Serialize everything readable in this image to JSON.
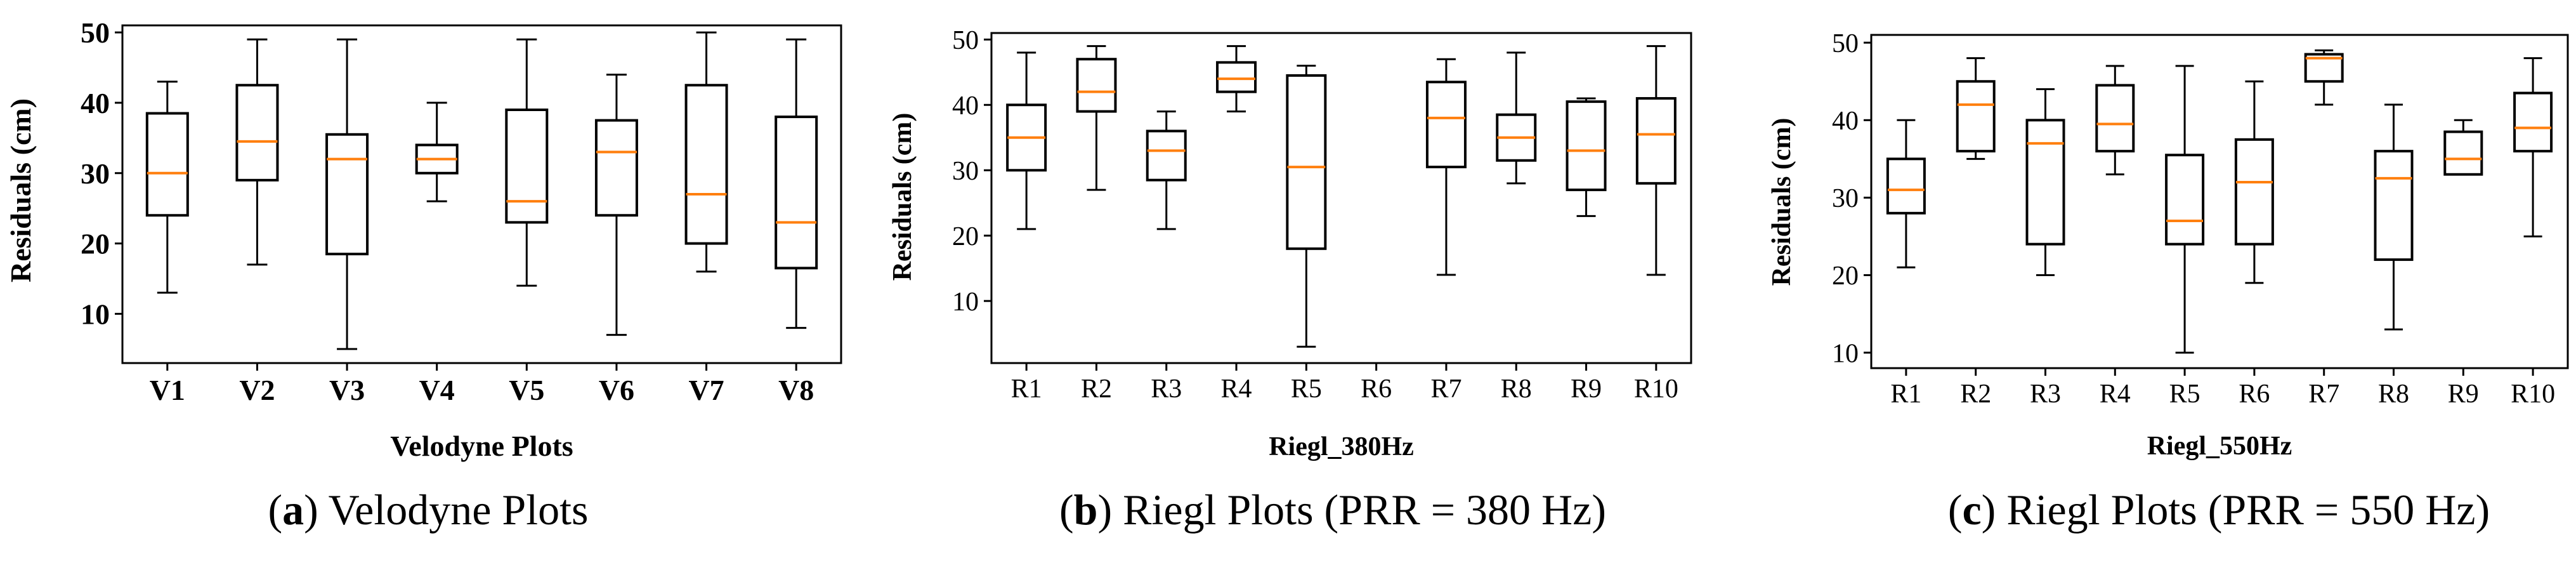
{
  "chart_data": [
    {
      "type": "box",
      "xlabel": "Velodyne Plots",
      "ylabel": "Residuals (cm)",
      "ylim": [
        3,
        51
      ],
      "yticks": [
        10,
        20,
        30,
        40,
        50
      ],
      "categories": [
        "V1",
        "V2",
        "V3",
        "V4",
        "V5",
        "V6",
        "V7",
        "V8"
      ],
      "boxes": [
        {
          "min": 13,
          "q1": 24,
          "median": 30,
          "q3": 38.5,
          "max": 43
        },
        {
          "min": 17,
          "q1": 29,
          "median": 34.5,
          "q3": 42.5,
          "max": 49
        },
        {
          "min": 5,
          "q1": 18.5,
          "median": 32,
          "q3": 35.5,
          "max": 49
        },
        {
          "min": 26,
          "q1": 30,
          "median": 32,
          "q3": 34,
          "max": 40
        },
        {
          "min": 14,
          "q1": 23,
          "median": 26,
          "q3": 39,
          "max": 49
        },
        {
          "min": 7,
          "q1": 24,
          "median": 33,
          "q3": 37.5,
          "max": 44
        },
        {
          "min": 16,
          "q1": 20,
          "median": 27,
          "q3": 42.5,
          "max": 50
        },
        {
          "min": 8,
          "q1": 16.5,
          "median": 23,
          "q3": 38,
          "max": 49
        }
      ],
      "bold_ticks": true,
      "caption": {
        "letter": "a",
        "text": "Velodyne Plots"
      }
    },
    {
      "type": "box",
      "xlabel": "Riegl_380Hz",
      "ylabel": "Residuals (cm)",
      "ylim": [
        0.5,
        51
      ],
      "yticks": [
        10,
        20,
        30,
        40,
        50
      ],
      "categories": [
        "R1",
        "R2",
        "R3",
        "R4",
        "R5",
        "R6",
        "R7",
        "R8",
        "R9",
        "R10"
      ],
      "boxes": [
        {
          "min": 21,
          "q1": 30,
          "median": 35,
          "q3": 40,
          "max": 48
        },
        {
          "min": 27,
          "q1": 39,
          "median": 42,
          "q3": 47,
          "max": 49
        },
        {
          "min": 21,
          "q1": 28.5,
          "median": 33,
          "q3": 36,
          "max": 39
        },
        {
          "min": 39,
          "q1": 42,
          "median": 44,
          "q3": 46.5,
          "max": 49
        },
        {
          "min": 3,
          "q1": 18,
          "median": 30.5,
          "q3": 44.5,
          "max": 46
        },
        null,
        {
          "min": 14,
          "q1": 30.5,
          "median": 38,
          "q3": 43.5,
          "max": 47
        },
        {
          "min": 28,
          "q1": 31.5,
          "median": 35,
          "q3": 38.5,
          "max": 48
        },
        {
          "min": 23,
          "q1": 27,
          "median": 33,
          "q3": 40.5,
          "max": 41
        },
        {
          "min": 14,
          "q1": 28,
          "median": 35.5,
          "q3": 41,
          "max": 49
        }
      ],
      "bold_ticks": false,
      "caption": {
        "letter": "b",
        "text": "Riegl Plots (PRR = 380 Hz)"
      }
    },
    {
      "type": "box",
      "xlabel": "Riegl_550Hz",
      "ylabel": "Residuals (cm)",
      "ylim": [
        8,
        51
      ],
      "yticks": [
        10,
        20,
        30,
        40,
        50
      ],
      "categories": [
        "R1",
        "R2",
        "R3",
        "R4",
        "R5",
        "R6",
        "R7",
        "R8",
        "R9",
        "R10"
      ],
      "boxes": [
        {
          "min": 21,
          "q1": 28,
          "median": 31,
          "q3": 35,
          "max": 40
        },
        {
          "min": 35,
          "q1": 36,
          "median": 42,
          "q3": 45,
          "max": 48
        },
        {
          "min": 20,
          "q1": 24,
          "median": 37,
          "q3": 40,
          "max": 44
        },
        {
          "min": 33,
          "q1": 36,
          "median": 39.5,
          "q3": 44.5,
          "max": 47
        },
        {
          "min": 10,
          "q1": 24,
          "median": 27,
          "q3": 35.5,
          "max": 47
        },
        {
          "min": 19,
          "q1": 24,
          "median": 32,
          "q3": 37.5,
          "max": 45
        },
        {
          "min": 42,
          "q1": 45,
          "median": 48,
          "q3": 48.5,
          "max": 49
        },
        {
          "min": 13,
          "q1": 22,
          "median": 32.5,
          "q3": 36,
          "max": 42
        },
        {
          "min": 33,
          "q1": 33,
          "median": 35,
          "q3": 38.5,
          "max": 40
        },
        {
          "min": 25,
          "q1": 36,
          "median": 39,
          "q3": 43.5,
          "max": 48
        }
      ],
      "bold_ticks": false,
      "caption": {
        "letter": "c",
        "text": "Riegl Plots (PRR = 550 Hz)"
      }
    }
  ],
  "colors": {
    "box": "#000000",
    "median": "#ff7f0e"
  }
}
